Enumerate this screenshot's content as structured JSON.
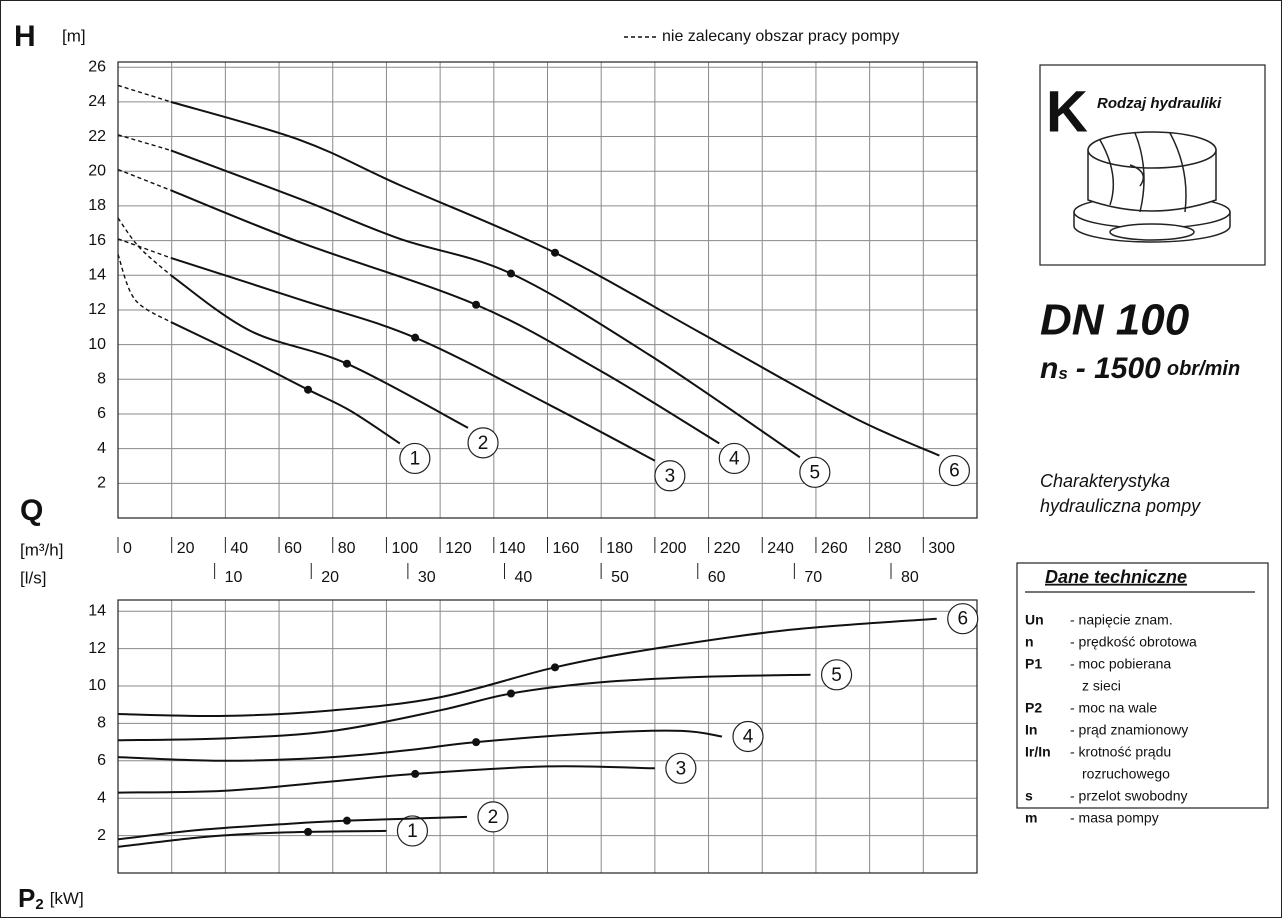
{
  "chart_data": [
    {
      "type": "line",
      "y_label": "H",
      "y_unit": "[m]",
      "x_label": "Q",
      "x_unit": "[m³/h]",
      "x2_unit": "[l/s]",
      "legend_text": "nie zalecany obszar pracy pompy",
      "color": "#111111",
      "grid": true,
      "xlim": [
        0,
        320
      ],
      "xticks": [
        0,
        20,
        40,
        60,
        80,
        100,
        120,
        140,
        160,
        180,
        200,
        220,
        240,
        260,
        280,
        300
      ],
      "x2lim": [
        0,
        88.9
      ],
      "x2ticks": [
        10,
        20,
        30,
        40,
        50,
        60,
        70,
        80
      ],
      "ylim": [
        0,
        26.3
      ],
      "yticks": [
        2,
        4,
        6,
        8,
        10,
        12,
        14,
        16,
        18,
        20,
        22,
        24,
        26
      ],
      "series": [
        {
          "name": "1",
          "x": [
            19.7,
            49.2,
            70.8,
            86.4,
            105
          ],
          "values": [
            11.3,
            9.1,
            7.4,
            6.2,
            4.3
          ],
          "not_recommended": {
            "x": [
              0,
              6.3,
              19.7
            ],
            "values": [
              15.2,
              12.6,
              11.3
            ]
          },
          "marker": {
            "x": 70.8,
            "value": 7.4
          }
        },
        {
          "name": "2",
          "x": [
            19.7,
            49.2,
            85.3,
            130.4
          ],
          "values": [
            14.0,
            10.8,
            8.9,
            5.2
          ],
          "not_recommended": {
            "x": [
              0,
              8,
              19.7
            ],
            "values": [
              17.3,
              15.6,
              14.0
            ]
          },
          "marker": {
            "x": 85.3,
            "value": 8.9
          }
        },
        {
          "name": "3",
          "x": [
            19.7,
            67.8,
            110.7,
            161,
            200
          ],
          "values": [
            15.0,
            12.6,
            10.4,
            6.5,
            3.3
          ],
          "not_recommended": {
            "x": [
              0,
              19.7
            ],
            "values": [
              16.1,
              15.0
            ]
          },
          "marker": {
            "x": 110.7,
            "value": 10.4
          }
        },
        {
          "name": "4",
          "x": [
            19.7,
            67.8,
            133.4,
            179.6,
            224
          ],
          "values": [
            18.9,
            15.9,
            12.3,
            8.5,
            4.3
          ],
          "not_recommended": {
            "x": [
              0,
              19.7
            ],
            "values": [
              20.1,
              18.9
            ]
          },
          "marker": {
            "x": 133.4,
            "value": 12.3
          }
        },
        {
          "name": "5",
          "x": [
            19.7,
            67.8,
            105,
            146.4,
            198,
            254
          ],
          "values": [
            21.2,
            18.4,
            16.1,
            14.1,
            9.4,
            3.5
          ],
          "not_recommended": {
            "x": [
              0,
              19.7
            ],
            "values": [
              22.1,
              21.2
            ]
          },
          "marker": {
            "x": 146.4,
            "value": 14.1
          }
        },
        {
          "name": "6",
          "x": [
            19.7,
            67.8,
            105,
            162.8,
            216.8,
            272.7,
            306
          ],
          "values": [
            24.0,
            21.8,
            19.2,
            15.3,
            10.7,
            5.9,
            3.6
          ],
          "not_recommended": {
            "x": [
              0,
              19.7
            ],
            "values": [
              24.95,
              24.0
            ]
          },
          "marker": {
            "x": 162.8,
            "value": 15.3
          }
        }
      ]
    },
    {
      "type": "line",
      "y_label": "P",
      "y_subscript": "2",
      "y_unit": "[kW]",
      "color": "#111111",
      "grid": true,
      "xlim": [
        0,
        320
      ],
      "ylim": [
        0,
        14.6
      ],
      "yticks": [
        2,
        4,
        6,
        8,
        10,
        12,
        14
      ],
      "series": [
        {
          "name": "1",
          "x": [
            0,
            30,
            50,
            70.8,
            100
          ],
          "values": [
            1.4,
            1.9,
            2.1,
            2.2,
            2.25
          ],
          "marker": {
            "x": 70.8,
            "value": 2.2
          }
        },
        {
          "name": "2",
          "x": [
            0,
            30,
            60,
            85.3,
            130
          ],
          "values": [
            1.8,
            2.3,
            2.6,
            2.8,
            3.0
          ],
          "marker": {
            "x": 85.3,
            "value": 2.8
          }
        },
        {
          "name": "3",
          "x": [
            0,
            40,
            80,
            110.7,
            160,
            200
          ],
          "values": [
            4.3,
            4.4,
            4.9,
            5.3,
            5.7,
            5.6
          ],
          "marker": {
            "x": 110.7,
            "value": 5.3
          }
        },
        {
          "name": "4",
          "x": [
            0,
            40,
            80,
            110,
            133.4,
            180,
            210,
            225
          ],
          "values": [
            6.2,
            6.0,
            6.2,
            6.6,
            7.0,
            7.5,
            7.6,
            7.3
          ],
          "marker": {
            "x": 133.4,
            "value": 7.0
          }
        },
        {
          "name": "5",
          "x": [
            0,
            40,
            80,
            120,
            146.4,
            180,
            220,
            258
          ],
          "values": [
            7.1,
            7.2,
            7.6,
            8.7,
            9.6,
            10.2,
            10.5,
            10.6
          ],
          "marker": {
            "x": 146.4,
            "value": 9.6
          }
        },
        {
          "name": "6",
          "x": [
            0,
            40,
            80,
            120,
            162.8,
            200,
            250,
            305
          ],
          "values": [
            8.5,
            8.4,
            8.7,
            9.4,
            11.0,
            12.0,
            13.0,
            13.6
          ],
          "marker": {
            "x": 162.8,
            "value": 11.0
          }
        }
      ]
    }
  ],
  "panel": {
    "hydraulics": {
      "letter": "K",
      "title": "Rodzaj hydrauliki"
    },
    "model": "DN 100",
    "speed": {
      "symbol": "n",
      "subscript": "s",
      "value": "- 1500",
      "unit": "obr/min"
    },
    "caption": [
      "Charakterystyka",
      "hydrauliczna pompy"
    ],
    "specs": {
      "title": "Dane techniczne",
      "rows": [
        {
          "code": "Un",
          "lines": [
            "- napięcie znam."
          ]
        },
        {
          "code": "n",
          "lines": [
            "- prędkość obrotowa"
          ]
        },
        {
          "code": "P1",
          "lines": [
            "- moc pobierana",
            "z sieci"
          ]
        },
        {
          "code": "P2",
          "lines": [
            "- moc na wale"
          ]
        },
        {
          "code": "In",
          "lines": [
            "- prąd znamionowy"
          ]
        },
        {
          "code": "Ir/In",
          "lines": [
            "- krotność prądu",
            "rozruchowego"
          ]
        },
        {
          "code": "s",
          "lines": [
            "- przelot swobodny"
          ]
        },
        {
          "code": "m",
          "lines": [
            "- masa pompy"
          ]
        }
      ]
    }
  }
}
